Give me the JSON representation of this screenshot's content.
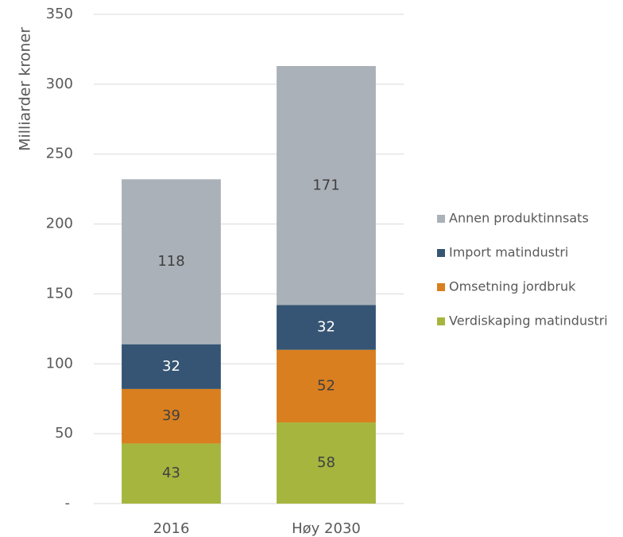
{
  "chart_data": {
    "type": "stacked_bar",
    "ylabel": "Milliarder kroner",
    "categories": [
      "2016",
      "Høy 2030"
    ],
    "series": [
      {
        "name": "Verdiskaping matindustri",
        "color": "#a5b53e",
        "label_color": "#404040",
        "values": [
          43,
          58
        ]
      },
      {
        "name": "Omsetning jordbruk",
        "color": "#d97f1f",
        "label_color": "#404040",
        "values": [
          39,
          52
        ]
      },
      {
        "name": "Import matindustri",
        "color": "#365574",
        "label_color": "#ffffff",
        "values": [
          32,
          32
        ]
      },
      {
        "name": "Annen produktinnsats",
        "color": "#aab1b8",
        "label_color": "#404040",
        "values": [
          118,
          171
        ]
      }
    ],
    "ylim": [
      0,
      350
    ],
    "yticks": [
      {
        "value": 0,
        "label": "-"
      },
      50,
      100,
      150,
      200,
      250,
      300,
      350
    ],
    "grid": true,
    "legend": "right"
  }
}
